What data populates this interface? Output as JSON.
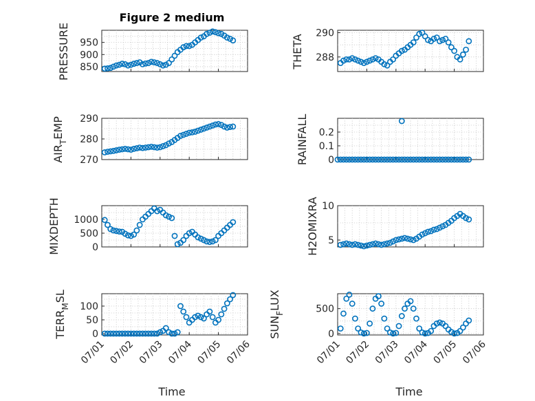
{
  "figure": {
    "title": "Figure 2 medium",
    "xlabel": "Time"
  },
  "x_ticks": [
    "07/01",
    "07/02",
    "07/03",
    "07/04",
    "07/05",
    "07/06"
  ],
  "colors": {
    "marker": "#0072bd",
    "axis": "#262626",
    "grid": "#c8c8c8"
  },
  "chart_data": [
    {
      "type": "scatter",
      "ylabel": "PRESSURE",
      "x_range": [
        "07/01",
        "07/06"
      ],
      "xlim": [
        0,
        5
      ],
      "ylim": [
        830,
        1000
      ],
      "yticks": [
        850,
        900,
        950
      ],
      "grid": true,
      "x": [
        0.1,
        0.2,
        0.3,
        0.4,
        0.5,
        0.6,
        0.7,
        0.8,
        0.9,
        1.0,
        1.1,
        1.2,
        1.3,
        1.4,
        1.5,
        1.6,
        1.7,
        1.8,
        1.9,
        2.0,
        2.1,
        2.2,
        2.3,
        2.4,
        2.5,
        2.6,
        2.7,
        2.8,
        2.9,
        3.0,
        3.1,
        3.2,
        3.3,
        3.4,
        3.5,
        3.6,
        3.7,
        3.8,
        3.9,
        4.0,
        4.1,
        4.2,
        4.3,
        4.4,
        4.5
      ],
      "y": [
        842,
        843,
        845,
        850,
        855,
        858,
        862,
        860,
        855,
        858,
        862,
        865,
        868,
        860,
        863,
        865,
        870,
        868,
        865,
        860,
        855,
        858,
        865,
        880,
        895,
        910,
        920,
        930,
        935,
        935,
        940,
        950,
        960,
        970,
        975,
        985,
        990,
        995,
        992,
        988,
        985,
        978,
        970,
        965,
        958
      ]
    },
    {
      "type": "scatter",
      "ylabel": "THETA",
      "xlim": [
        0,
        5
      ],
      "ylim": [
        286.8,
        290.2
      ],
      "yticks": [
        288,
        290
      ],
      "grid": true,
      "x": [
        0.1,
        0.2,
        0.3,
        0.4,
        0.5,
        0.6,
        0.7,
        0.8,
        0.9,
        1.0,
        1.1,
        1.2,
        1.3,
        1.4,
        1.5,
        1.6,
        1.7,
        1.8,
        1.9,
        2.0,
        2.1,
        2.2,
        2.3,
        2.4,
        2.5,
        2.6,
        2.7,
        2.8,
        2.9,
        3.0,
        3.1,
        3.2,
        3.3,
        3.4,
        3.5,
        3.6,
        3.7,
        3.8,
        3.9,
        4.0,
        4.1,
        4.2,
        4.3,
        4.4,
        4.5
      ],
      "y": [
        287.5,
        287.7,
        287.8,
        287.8,
        287.9,
        287.8,
        287.7,
        287.6,
        287.5,
        287.6,
        287.7,
        287.8,
        287.9,
        287.8,
        287.6,
        287.4,
        287.3,
        287.6,
        287.8,
        288.1,
        288.3,
        288.5,
        288.6,
        288.8,
        289.0,
        289.2,
        289.6,
        289.9,
        290.0,
        289.7,
        289.4,
        289.3,
        289.5,
        289.6,
        289.3,
        289.4,
        289.5,
        289.2,
        288.8,
        288.5,
        288.0,
        287.8,
        288.2,
        288.6,
        289.3
      ]
    },
    {
      "type": "scatter",
      "ylabel": "AIR_TEMP",
      "xlim": [
        0,
        5
      ],
      "ylim": [
        270,
        290
      ],
      "yticks": [
        270,
        280,
        290
      ],
      "grid": true,
      "x": [
        0.1,
        0.2,
        0.3,
        0.4,
        0.5,
        0.6,
        0.7,
        0.8,
        0.9,
        1.0,
        1.1,
        1.2,
        1.3,
        1.4,
        1.5,
        1.6,
        1.7,
        1.8,
        1.9,
        2.0,
        2.1,
        2.2,
        2.3,
        2.4,
        2.5,
        2.6,
        2.7,
        2.8,
        2.9,
        3.0,
        3.1,
        3.2,
        3.3,
        3.4,
        3.5,
        3.6,
        3.7,
        3.8,
        3.9,
        4.0,
        4.1,
        4.2,
        4.3,
        4.4,
        4.5
      ],
      "y": [
        273.5,
        273.8,
        274.0,
        274.2,
        274.5,
        274.8,
        275.0,
        275.2,
        275.0,
        274.8,
        275.2,
        275.5,
        275.8,
        275.6,
        275.8,
        276.0,
        276.2,
        276.0,
        275.8,
        276.0,
        276.5,
        277.0,
        277.8,
        278.5,
        279.5,
        280.5,
        281.5,
        282.0,
        282.5,
        283.0,
        283.2,
        283.5,
        284.0,
        284.5,
        285.0,
        285.5,
        286.0,
        286.5,
        287.0,
        287.2,
        286.8,
        286.0,
        285.5,
        285.8,
        286.0
      ]
    },
    {
      "type": "scatter",
      "ylabel": "RAINFALL",
      "xlim": [
        0,
        5
      ],
      "ylim": [
        0,
        0.3
      ],
      "yticks": [
        0,
        0.1,
        0.2
      ],
      "grid": true,
      "x": [
        0.0,
        0.1,
        0.2,
        0.3,
        0.4,
        0.5,
        0.6,
        0.7,
        0.8,
        0.9,
        1.0,
        1.1,
        1.2,
        1.3,
        1.4,
        1.5,
        1.6,
        1.7,
        1.8,
        1.9,
        2.0,
        2.1,
        2.2,
        2.3,
        2.4,
        2.5,
        2.6,
        2.7,
        2.8,
        2.9,
        3.0,
        3.1,
        3.2,
        3.3,
        3.4,
        3.5,
        3.6,
        3.7,
        3.8,
        3.9,
        4.0,
        4.1,
        4.2,
        4.3,
        4.4,
        4.5,
        2.2
      ],
      "y": [
        0,
        0,
        0,
        0,
        0,
        0,
        0,
        0,
        0,
        0,
        0,
        0,
        0,
        0,
        0,
        0,
        0,
        0,
        0,
        0,
        0,
        0,
        0,
        0,
        0,
        0,
        0,
        0,
        0,
        0,
        0,
        0,
        0,
        0,
        0,
        0,
        0,
        0,
        0,
        0,
        0,
        0,
        0,
        0,
        0,
        0,
        0.28
      ]
    },
    {
      "type": "scatter",
      "ylabel": "MIXDEPTH",
      "xlim": [
        0,
        5
      ],
      "ylim": [
        0,
        1500
      ],
      "yticks": [
        0,
        500,
        1000
      ],
      "grid": true,
      "x": [
        0.1,
        0.2,
        0.3,
        0.4,
        0.5,
        0.6,
        0.7,
        0.8,
        0.9,
        1.0,
        1.1,
        1.2,
        1.3,
        1.4,
        1.5,
        1.6,
        1.7,
        1.8,
        1.9,
        2.0,
        2.1,
        2.2,
        2.3,
        2.4,
        2.5,
        2.6,
        2.7,
        2.8,
        2.9,
        3.0,
        3.1,
        3.2,
        3.3,
        3.4,
        3.5,
        3.6,
        3.7,
        3.8,
        3.9,
        4.0,
        4.1,
        4.2,
        4.3,
        4.4,
        4.5
      ],
      "y": [
        980,
        800,
        650,
        600,
        580,
        560,
        550,
        480,
        420,
        400,
        450,
        600,
        800,
        1000,
        1100,
        1200,
        1300,
        1400,
        1300,
        1350,
        1250,
        1150,
        1100,
        1050,
        400,
        100,
        150,
        250,
        400,
        500,
        550,
        450,
        350,
        300,
        250,
        200,
        180,
        200,
        250,
        400,
        500,
        600,
        700,
        800,
        900
      ]
    },
    {
      "type": "scatter",
      "ylabel": "H2OMIXRA",
      "xlim": [
        0,
        5
      ],
      "ylim": [
        4,
        10
      ],
      "yticks": [
        5,
        10
      ],
      "grid": true,
      "x": [
        0.1,
        0.2,
        0.3,
        0.4,
        0.5,
        0.6,
        0.7,
        0.8,
        0.9,
        1.0,
        1.1,
        1.2,
        1.3,
        1.4,
        1.5,
        1.6,
        1.7,
        1.8,
        1.9,
        2.0,
        2.1,
        2.2,
        2.3,
        2.4,
        2.5,
        2.6,
        2.7,
        2.8,
        2.9,
        3.0,
        3.1,
        3.2,
        3.3,
        3.4,
        3.5,
        3.6,
        3.7,
        3.8,
        3.9,
        4.0,
        4.1,
        4.2,
        4.3,
        4.4,
        4.5
      ],
      "y": [
        4.3,
        4.4,
        4.5,
        4.4,
        4.3,
        4.4,
        4.3,
        4.2,
        4.1,
        4.2,
        4.3,
        4.4,
        4.5,
        4.4,
        4.3,
        4.4,
        4.5,
        4.6,
        4.8,
        5.0,
        5.1,
        5.2,
        5.3,
        5.2,
        5.1,
        5.0,
        5.2,
        5.5,
        5.8,
        6.0,
        6.2,
        6.3,
        6.5,
        6.6,
        6.8,
        7.0,
        7.2,
        7.5,
        7.8,
        8.2,
        8.5,
        8.8,
        8.5,
        8.2,
        8.0
      ]
    },
    {
      "type": "scatter",
      "ylabel": "TERR_MSL",
      "xlim": [
        0,
        5
      ],
      "ylim": [
        -5,
        145
      ],
      "yticks": [
        0,
        50,
        100
      ],
      "grid": true,
      "x": [
        0.1,
        0.2,
        0.3,
        0.4,
        0.5,
        0.6,
        0.7,
        0.8,
        0.9,
        1.0,
        1.1,
        1.2,
        1.3,
        1.4,
        1.5,
        1.6,
        1.7,
        1.8,
        1.9,
        2.0,
        2.1,
        2.2,
        2.3,
        2.4,
        2.5,
        2.6,
        2.7,
        2.8,
        2.9,
        3.0,
        3.1,
        3.2,
        3.3,
        3.4,
        3.5,
        3.6,
        3.7,
        3.8,
        3.9,
        4.0,
        4.1,
        4.2,
        4.3,
        4.4,
        4.5
      ],
      "y": [
        0,
        0,
        0,
        0,
        0,
        0,
        0,
        0,
        0,
        0,
        0,
        0,
        0,
        0,
        0,
        0,
        0,
        0,
        0,
        5,
        10,
        20,
        5,
        0,
        0,
        5,
        100,
        80,
        60,
        40,
        50,
        60,
        65,
        60,
        55,
        70,
        80,
        60,
        40,
        50,
        70,
        90,
        110,
        125,
        140
      ]
    },
    {
      "type": "scatter",
      "ylabel": "SUN_FLUX",
      "xlim": [
        0,
        5
      ],
      "ylim": [
        -30,
        800
      ],
      "yticks": [
        0,
        500
      ],
      "grid": true,
      "x": [
        0.1,
        0.2,
        0.3,
        0.4,
        0.5,
        0.6,
        0.7,
        0.8,
        0.9,
        1.0,
        1.1,
        1.2,
        1.3,
        1.4,
        1.5,
        1.6,
        1.7,
        1.8,
        1.9,
        2.0,
        2.1,
        2.2,
        2.3,
        2.4,
        2.5,
        2.6,
        2.7,
        2.8,
        2.9,
        3.0,
        3.1,
        3.2,
        3.3,
        3.4,
        3.5,
        3.6,
        3.7,
        3.8,
        3.9,
        4.0,
        4.1,
        4.2,
        4.3,
        4.4,
        4.5
      ],
      "y": [
        100,
        400,
        700,
        780,
        600,
        300,
        100,
        20,
        0,
        10,
        200,
        500,
        700,
        750,
        600,
        300,
        100,
        20,
        0,
        10,
        150,
        350,
        500,
        600,
        650,
        500,
        300,
        100,
        20,
        0,
        10,
        50,
        150,
        200,
        220,
        200,
        150,
        80,
        30,
        0,
        10,
        50,
        120,
        200,
        260
      ]
    }
  ],
  "panels": [
    {
      "ylabel": "PRESSURE"
    },
    {
      "ylabel": "THETA"
    },
    {
      "ylabel_base": "AIR",
      "ylabel_sub": "T",
      "ylabel_rest": "EMP"
    },
    {
      "ylabel": "RAINFALL"
    },
    {
      "ylabel": "MIXDEPTH"
    },
    {
      "ylabel": "H2OMIXRA"
    },
    {
      "ylabel_base": "TERR",
      "ylabel_sub": "M",
      "ylabel_rest": "SL"
    },
    {
      "ylabel_base": "SUN",
      "ylabel_sub": "F",
      "ylabel_rest": "LUX"
    }
  ]
}
